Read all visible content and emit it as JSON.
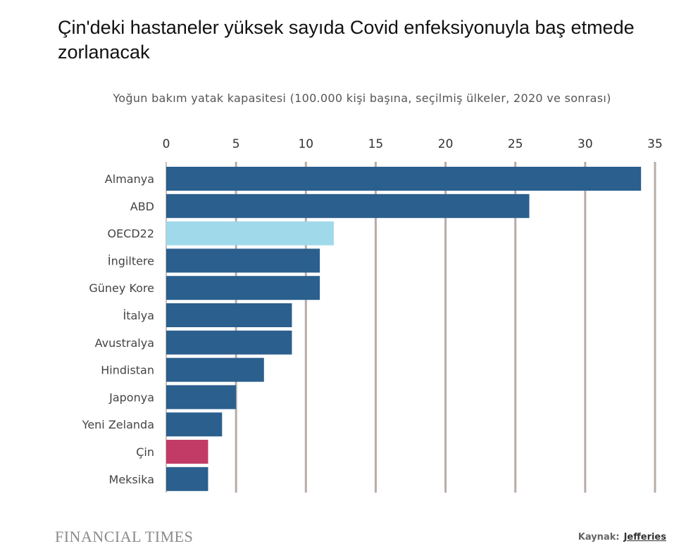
{
  "title": "Çin'deki hastaneler yüksek sayıda Covid enfeksiyonuyla baş etmede zorlanacak",
  "subtitle": "Yoğun bakım yatak kapasitesi (100.000 kişi başına, seçilmiş ülkeler, 2020 ve sonrası)",
  "footer": {
    "logo": "FINANCIAL TIMES",
    "source_label": "Kaynak:",
    "source_name": "Jefferies"
  },
  "chart_data": {
    "type": "bar",
    "orientation": "horizontal",
    "title": "Çin'deki hastaneler yüksek sayıda Covid enfeksiyonuyla baş etmede zorlanacak",
    "subtitle": "Yoğun bakım yatak kapasitesi (100.000 kişi başına, seçilmiş ülkeler, 2020 ve sonrası)",
    "categories": [
      "Almanya",
      "ABD",
      "OECD22",
      "İngiltere",
      "Güney Kore",
      "İtalya",
      "Avustralya",
      "Hindistan",
      "Japonya",
      "Yeni Zelanda",
      "Çin",
      "Meksika"
    ],
    "values": [
      34,
      26,
      12,
      11,
      11,
      9,
      9,
      7,
      5,
      4,
      3,
      3
    ],
    "bar_colors": [
      "#2b5f8e",
      "#2b5f8e",
      "#9fd9ea",
      "#2b5f8e",
      "#2b5f8e",
      "#2b5f8e",
      "#2b5f8e",
      "#2b5f8e",
      "#2b5f8e",
      "#2b5f8e",
      "#c23b67",
      "#2b5f8e"
    ],
    "xlim": [
      0,
      35
    ],
    "xticks": [
      "0",
      "5",
      "10",
      "15",
      "20",
      "25",
      "30",
      "35"
    ],
    "xaxis_position": "top",
    "grid": "vertical",
    "grid_color": "#b7aca8"
  }
}
